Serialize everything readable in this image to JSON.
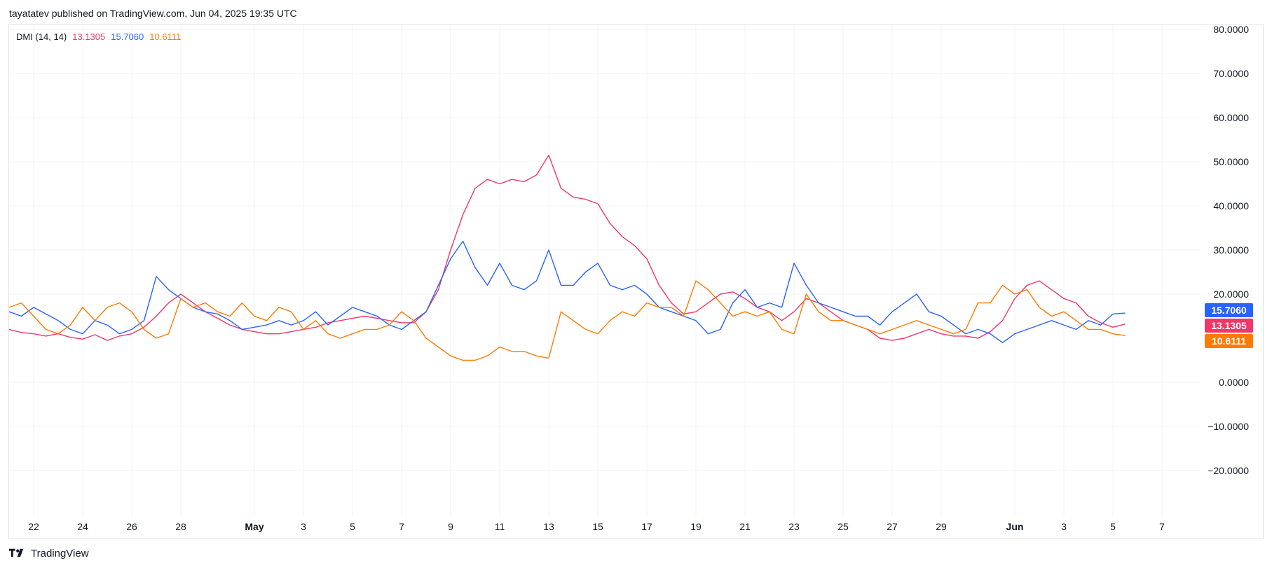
{
  "header": {
    "publisher_text": "tayatatev published on TradingView.com, Jun 04, 2025 19:35 UTC"
  },
  "legend": {
    "name": "DMI (14, 14)",
    "values": [
      {
        "text": "13.1305",
        "color": "#f23667"
      },
      {
        "text": "15.7060",
        "color": "#2962ff"
      },
      {
        "text": "10.6111",
        "color": "#ff7a00"
      }
    ]
  },
  "footer": {
    "brand": "TradingView",
    "logo_icon": "tradingview-logo-icon"
  },
  "colors": {
    "adx": "#f23667",
    "plus_di": "#2962ff",
    "minus_di": "#ff7a00",
    "grid": "#f0f3fa",
    "axis_text": "#131722"
  },
  "chart_data": {
    "type": "line",
    "y_ticks": [
      80,
      70,
      60,
      50,
      40,
      30,
      20,
      0,
      -10,
      -20
    ],
    "y_tick_labels": [
      "80.0000",
      "70.0000",
      "60.0000",
      "50.0000",
      "40.0000",
      "30.0000",
      "20.0000",
      "0.0000",
      "−10.0000",
      "−20.0000"
    ],
    "ylim": [
      -30,
      82
    ],
    "x_ticks": [
      {
        "label": "22",
        "day": 0,
        "bold": false
      },
      {
        "label": "24",
        "day": 2,
        "bold": false
      },
      {
        "label": "26",
        "day": 4,
        "bold": false
      },
      {
        "label": "28",
        "day": 6,
        "bold": false
      },
      {
        "label": "May",
        "day": 9,
        "bold": true
      },
      {
        "label": "3",
        "day": 11,
        "bold": false
      },
      {
        "label": "5",
        "day": 13,
        "bold": false
      },
      {
        "label": "7",
        "day": 15,
        "bold": false
      },
      {
        "label": "9",
        "day": 17,
        "bold": false
      },
      {
        "label": "11",
        "day": 19,
        "bold": false
      },
      {
        "label": "13",
        "day": 21,
        "bold": false
      },
      {
        "label": "15",
        "day": 23,
        "bold": false
      },
      {
        "label": "17",
        "day": 25,
        "bold": false
      },
      {
        "label": "19",
        "day": 27,
        "bold": false
      },
      {
        "label": "21",
        "day": 29,
        "bold": false
      },
      {
        "label": "23",
        "day": 31,
        "bold": false
      },
      {
        "label": "25",
        "day": 33,
        "bold": false
      },
      {
        "label": "27",
        "day": 35,
        "bold": false
      },
      {
        "label": "29",
        "day": 37,
        "bold": false
      },
      {
        "label": "Jun",
        "day": 40,
        "bold": true
      },
      {
        "label": "3",
        "day": 42,
        "bold": false
      },
      {
        "label": "5",
        "day": 44,
        "bold": false
      },
      {
        "label": "7",
        "day": 46,
        "bold": false
      }
    ],
    "xlim": [
      -1,
      47.6
    ],
    "price_labels": [
      {
        "text": "15.7060",
        "value": 15.706,
        "color": "#2962ff"
      },
      {
        "text": "13.1305",
        "value": 13.1305,
        "color": "#f23667"
      },
      {
        "text": "10.6111",
        "color": "#ff7a00",
        "value": 10.6111
      }
    ],
    "series": [
      {
        "key": "adx",
        "color": "#f23667",
        "points": [
          [
            -1,
            12
          ],
          [
            -0.5,
            11.3
          ],
          [
            0,
            11
          ],
          [
            0.5,
            10.5
          ],
          [
            1,
            11
          ],
          [
            1.5,
            10.2
          ],
          [
            2,
            9.8
          ],
          [
            2.5,
            10.8
          ],
          [
            3,
            9.5
          ],
          [
            3.5,
            10.5
          ],
          [
            4,
            11
          ],
          [
            4.5,
            12.5
          ],
          [
            5,
            15
          ],
          [
            5.5,
            18
          ],
          [
            6,
            20
          ],
          [
            6.5,
            18
          ],
          [
            7,
            16
          ],
          [
            7.5,
            14.5
          ],
          [
            8,
            13
          ],
          [
            8.5,
            12
          ],
          [
            9,
            11.5
          ],
          [
            9.5,
            11
          ],
          [
            10,
            11
          ],
          [
            10.5,
            11.5
          ],
          [
            11,
            12
          ],
          [
            11.5,
            12.5
          ],
          [
            12,
            13.5
          ],
          [
            12.5,
            14
          ],
          [
            13,
            14.5
          ],
          [
            13.5,
            15
          ],
          [
            14,
            14.5
          ],
          [
            14.5,
            14
          ],
          [
            15,
            13.5
          ],
          [
            15.5,
            13.5
          ],
          [
            16,
            16
          ],
          [
            16.5,
            21
          ],
          [
            17,
            30
          ],
          [
            17.5,
            38
          ],
          [
            18,
            44
          ],
          [
            18.5,
            46
          ],
          [
            19,
            45
          ],
          [
            19.5,
            46
          ],
          [
            20,
            45.5
          ],
          [
            20.5,
            47
          ],
          [
            21,
            51.5
          ],
          [
            21.5,
            44
          ],
          [
            22,
            42
          ],
          [
            22.5,
            41.5
          ],
          [
            23,
            40.5
          ],
          [
            23.5,
            36
          ],
          [
            24,
            33
          ],
          [
            24.5,
            31
          ],
          [
            25,
            28
          ],
          [
            25.5,
            22
          ],
          [
            26,
            18
          ],
          [
            26.5,
            15.5
          ],
          [
            27,
            16
          ],
          [
            27.5,
            18
          ],
          [
            28,
            20
          ],
          [
            28.5,
            20.5
          ],
          [
            29,
            19
          ],
          [
            29.5,
            17
          ],
          [
            30,
            16
          ],
          [
            30.5,
            14
          ],
          [
            31,
            16
          ],
          [
            31.5,
            19
          ],
          [
            32,
            18
          ],
          [
            32.5,
            16
          ],
          [
            33,
            14
          ],
          [
            33.5,
            13
          ],
          [
            34,
            12
          ],
          [
            34.5,
            10
          ],
          [
            35,
            9.5
          ],
          [
            35.5,
            10
          ],
          [
            36,
            11
          ],
          [
            36.5,
            12
          ],
          [
            37,
            11
          ],
          [
            37.5,
            10.5
          ],
          [
            38,
            10.5
          ],
          [
            38.5,
            10
          ],
          [
            39,
            11.5
          ],
          [
            39.5,
            14
          ],
          [
            40,
            19
          ],
          [
            40.5,
            22
          ],
          [
            41,
            23
          ],
          [
            41.5,
            21
          ],
          [
            42,
            19
          ],
          [
            42.5,
            18
          ],
          [
            43,
            15
          ],
          [
            43.5,
            13.5
          ],
          [
            44,
            12.5
          ],
          [
            44.5,
            13.2
          ]
        ]
      },
      {
        "key": "plus_di",
        "color": "#2962ff",
        "points": [
          [
            -1,
            16
          ],
          [
            -0.5,
            15
          ],
          [
            0,
            17
          ],
          [
            0.5,
            15.5
          ],
          [
            1,
            14
          ],
          [
            1.5,
            12
          ],
          [
            2,
            11
          ],
          [
            2.5,
            14
          ],
          [
            3,
            13
          ],
          [
            3.5,
            11
          ],
          [
            4,
            12
          ],
          [
            4.5,
            14
          ],
          [
            5,
            24
          ],
          [
            5.5,
            21
          ],
          [
            6,
            19
          ],
          [
            6.5,
            17
          ],
          [
            7,
            16
          ],
          [
            7.5,
            15.5
          ],
          [
            8,
            14
          ],
          [
            8.5,
            12
          ],
          [
            9,
            12.5
          ],
          [
            9.5,
            13
          ],
          [
            10,
            14
          ],
          [
            10.5,
            13
          ],
          [
            11,
            14
          ],
          [
            11.5,
            16
          ],
          [
            12,
            13
          ],
          [
            12.5,
            15
          ],
          [
            13,
            17
          ],
          [
            13.5,
            16
          ],
          [
            14,
            15
          ],
          [
            14.5,
            13
          ],
          [
            15,
            12
          ],
          [
            15.5,
            14
          ],
          [
            16,
            16
          ],
          [
            16.5,
            22
          ],
          [
            17,
            28
          ],
          [
            17.5,
            32
          ],
          [
            18,
            26
          ],
          [
            18.5,
            22
          ],
          [
            19,
            27
          ],
          [
            19.5,
            22
          ],
          [
            20,
            21
          ],
          [
            20.5,
            23
          ],
          [
            21,
            30
          ],
          [
            21.5,
            22
          ],
          [
            22,
            22
          ],
          [
            22.5,
            25
          ],
          [
            23,
            27
          ],
          [
            23.5,
            22
          ],
          [
            24,
            21
          ],
          [
            24.5,
            22
          ],
          [
            25,
            20
          ],
          [
            25.5,
            17
          ],
          [
            26,
            16
          ],
          [
            26.5,
            15
          ],
          [
            27,
            14
          ],
          [
            27.5,
            11
          ],
          [
            28,
            12
          ],
          [
            28.5,
            18
          ],
          [
            29,
            21
          ],
          [
            29.5,
            17
          ],
          [
            30,
            18
          ],
          [
            30.5,
            17
          ],
          [
            31,
            27
          ],
          [
            31.5,
            22
          ],
          [
            32,
            18
          ],
          [
            32.5,
            17
          ],
          [
            33,
            16
          ],
          [
            33.5,
            15
          ],
          [
            34,
            15
          ],
          [
            34.5,
            13
          ],
          [
            35,
            16
          ],
          [
            35.5,
            18
          ],
          [
            36,
            20
          ],
          [
            36.5,
            16
          ],
          [
            37,
            15
          ],
          [
            37.5,
            13
          ],
          [
            38,
            11
          ],
          [
            38.5,
            12
          ],
          [
            39,
            11
          ],
          [
            39.5,
            9
          ],
          [
            40,
            11
          ],
          [
            40.5,
            12
          ],
          [
            41,
            13
          ],
          [
            41.5,
            14
          ],
          [
            42,
            13
          ],
          [
            42.5,
            12
          ],
          [
            43,
            14
          ],
          [
            43.5,
            13
          ],
          [
            44,
            15.5
          ],
          [
            44.5,
            15.7
          ]
        ]
      },
      {
        "key": "minus_di",
        "color": "#ff7a00",
        "points": [
          [
            -1,
            17
          ],
          [
            -0.5,
            18
          ],
          [
            0,
            15
          ],
          [
            0.5,
            12
          ],
          [
            1,
            11
          ],
          [
            1.5,
            13
          ],
          [
            2,
            17
          ],
          [
            2.5,
            14
          ],
          [
            3,
            17
          ],
          [
            3.5,
            18
          ],
          [
            4,
            16
          ],
          [
            4.5,
            12
          ],
          [
            5,
            10
          ],
          [
            5.5,
            11
          ],
          [
            6,
            19
          ],
          [
            6.5,
            17
          ],
          [
            7,
            18
          ],
          [
            7.5,
            16
          ],
          [
            8,
            15
          ],
          [
            8.5,
            18
          ],
          [
            9,
            15
          ],
          [
            9.5,
            14
          ],
          [
            10,
            17
          ],
          [
            10.5,
            16
          ],
          [
            11,
            12
          ],
          [
            11.5,
            14
          ],
          [
            12,
            11
          ],
          [
            12.5,
            10
          ],
          [
            13,
            11
          ],
          [
            13.5,
            12
          ],
          [
            14,
            12
          ],
          [
            14.5,
            13
          ],
          [
            15,
            16
          ],
          [
            15.5,
            14
          ],
          [
            16,
            10
          ],
          [
            16.5,
            8
          ],
          [
            17,
            6
          ],
          [
            17.5,
            5
          ],
          [
            18,
            5
          ],
          [
            18.5,
            6
          ],
          [
            19,
            8
          ],
          [
            19.5,
            7
          ],
          [
            20,
            7
          ],
          [
            20.5,
            6
          ],
          [
            21,
            5.5
          ],
          [
            21.5,
            16
          ],
          [
            22,
            14
          ],
          [
            22.5,
            12
          ],
          [
            23,
            11
          ],
          [
            23.5,
            14
          ],
          [
            24,
            16
          ],
          [
            24.5,
            15
          ],
          [
            25,
            18
          ],
          [
            25.5,
            17
          ],
          [
            26,
            17
          ],
          [
            26.5,
            15
          ],
          [
            27,
            23
          ],
          [
            27.5,
            21
          ],
          [
            28,
            18
          ],
          [
            28.5,
            15
          ],
          [
            29,
            16
          ],
          [
            29.5,
            15
          ],
          [
            30,
            16
          ],
          [
            30.5,
            12
          ],
          [
            31,
            11
          ],
          [
            31.5,
            20
          ],
          [
            32,
            16
          ],
          [
            32.5,
            14
          ],
          [
            33,
            14
          ],
          [
            33.5,
            13
          ],
          [
            34,
            12
          ],
          [
            34.5,
            11
          ],
          [
            35,
            12
          ],
          [
            35.5,
            13
          ],
          [
            36,
            14
          ],
          [
            36.5,
            13
          ],
          [
            37,
            12
          ],
          [
            37.5,
            11
          ],
          [
            38,
            12
          ],
          [
            38.5,
            18
          ],
          [
            39,
            18
          ],
          [
            39.5,
            22
          ],
          [
            40,
            20
          ],
          [
            40.5,
            21
          ],
          [
            41,
            17
          ],
          [
            41.5,
            15
          ],
          [
            42,
            16
          ],
          [
            42.5,
            14
          ],
          [
            43,
            12
          ],
          [
            43.5,
            12
          ],
          [
            44,
            11
          ],
          [
            44.5,
            10.6
          ]
        ]
      }
    ]
  }
}
